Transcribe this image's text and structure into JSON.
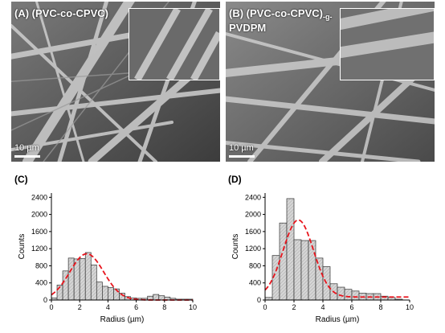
{
  "panel_a": {
    "label": "(A) (PVC-co-CPVC)",
    "scale": "10 µm"
  },
  "panel_b": {
    "label_line1": "(B) (PVC-co-CPVC)",
    "label_sub": "-g-",
    "label_line2": "PVDPM",
    "scale": "10 µm"
  },
  "chart_data": [
    {
      "type": "bar",
      "panel": "(C)",
      "xlabel": "Radius (µm)",
      "ylabel": "Counts",
      "xlim": [
        0,
        10
      ],
      "ylim": [
        0,
        2500
      ],
      "xticks": [
        0,
        2,
        4,
        6,
        8,
        10
      ],
      "yticks": [
        0,
        400,
        800,
        1200,
        1600,
        2000,
        2400
      ],
      "bin_width": 0.4,
      "bin_starts": [
        0,
        0.4,
        0.8,
        1.2,
        1.6,
        2.0,
        2.4,
        2.8,
        3.2,
        3.6,
        4.0,
        4.4,
        4.8,
        5.2,
        5.6,
        6.0,
        6.4,
        6.8,
        7.2,
        7.6,
        8.0,
        8.4,
        8.8,
        9.2,
        9.6
      ],
      "values": [
        50,
        350,
        680,
        980,
        960,
        970,
        1110,
        820,
        420,
        320,
        290,
        260,
        160,
        80,
        50,
        40,
        40,
        90,
        130,
        100,
        70,
        40,
        20,
        20,
        20
      ],
      "fit": {
        "style": "red dashed",
        "mean": 2.5,
        "sd": 1.2,
        "peak": 1080,
        "offset": 0
      }
    },
    {
      "type": "bar",
      "panel": "(D)",
      "xlabel": "Radius (µm)",
      "ylabel": "Counts",
      "xlim": [
        0,
        10
      ],
      "ylim": [
        0,
        2500
      ],
      "xticks": [
        0,
        2,
        4,
        6,
        8,
        10
      ],
      "yticks": [
        0,
        400,
        800,
        1200,
        1600,
        2000,
        2400
      ],
      "bin_width": 0.5,
      "bin_starts": [
        0,
        0.5,
        1.0,
        1.5,
        2.0,
        2.5,
        3.0,
        3.5,
        4.0,
        4.5,
        5.0,
        5.5,
        6.0,
        6.5,
        7.0,
        7.5,
        8.0,
        8.5,
        9.0,
        9.5
      ],
      "values": [
        60,
        1040,
        1800,
        2370,
        1410,
        1390,
        1390,
        980,
        780,
        380,
        300,
        250,
        210,
        160,
        150,
        150,
        90,
        60,
        20,
        0
      ],
      "fit": {
        "style": "red dashed",
        "mean": 2.3,
        "sd": 1.05,
        "peak": 1800,
        "offset": 70
      }
    }
  ]
}
